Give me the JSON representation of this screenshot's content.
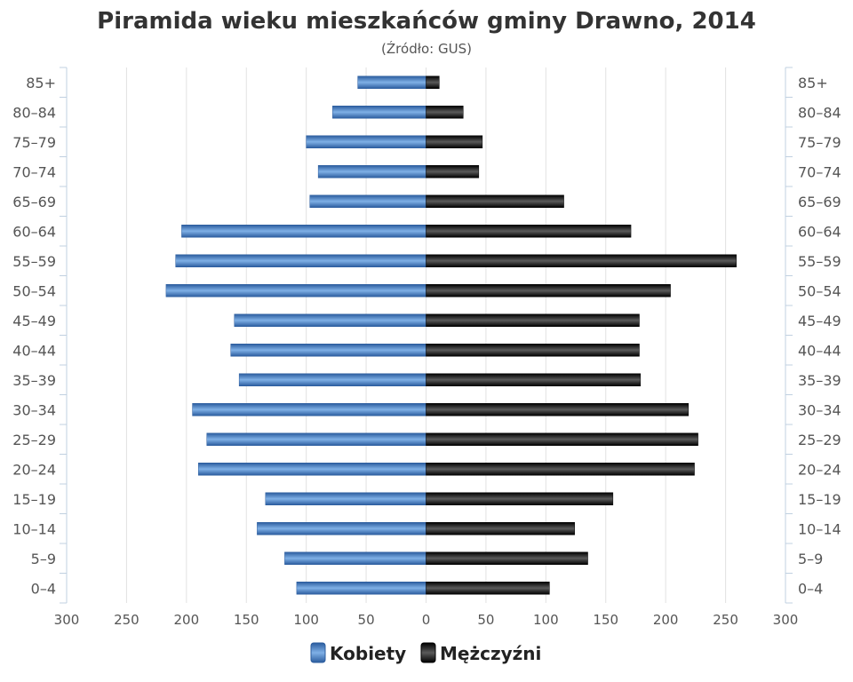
{
  "chart_data": {
    "type": "bar",
    "orientation": "horizontal",
    "layout": "population-pyramid",
    "title": "Piramida wieku mieszkańców gminy Drawno, 2014",
    "subtitle": "(Źródło: GUS)",
    "categories": [
      "85+",
      "80–84",
      "75–79",
      "70–74",
      "65–69",
      "60–64",
      "55–59",
      "50–54",
      "45–49",
      "40–44",
      "35–39",
      "30–34",
      "25–29",
      "20–24",
      "15–19",
      "10–14",
      "5–9",
      "0–4"
    ],
    "series": [
      {
        "name": "Kobiety",
        "side": "left",
        "color": "#3f74b8",
        "values": [
          57,
          78,
          100,
          90,
          97,
          204,
          209,
          217,
          160,
          163,
          156,
          195,
          183,
          190,
          134,
          141,
          118,
          108
        ]
      },
      {
        "name": "Mężczyźni",
        "side": "right",
        "color": "#111111",
        "values": [
          11,
          31,
          47,
          44,
          115,
          171,
          259,
          204,
          178,
          178,
          179,
          219,
          227,
          224,
          156,
          124,
          135,
          103
        ]
      }
    ],
    "xlim": [
      -300,
      300
    ],
    "x_ticks": [
      -300,
      -250,
      -200,
      -150,
      -100,
      -50,
      0,
      50,
      100,
      150,
      200,
      250,
      300
    ],
    "x_tick_labels": [
      "300",
      "250",
      "200",
      "150",
      "100",
      "50",
      "0",
      "50",
      "100",
      "150",
      "200",
      "250",
      "300"
    ],
    "grid": true,
    "legend_position": "bottom"
  }
}
